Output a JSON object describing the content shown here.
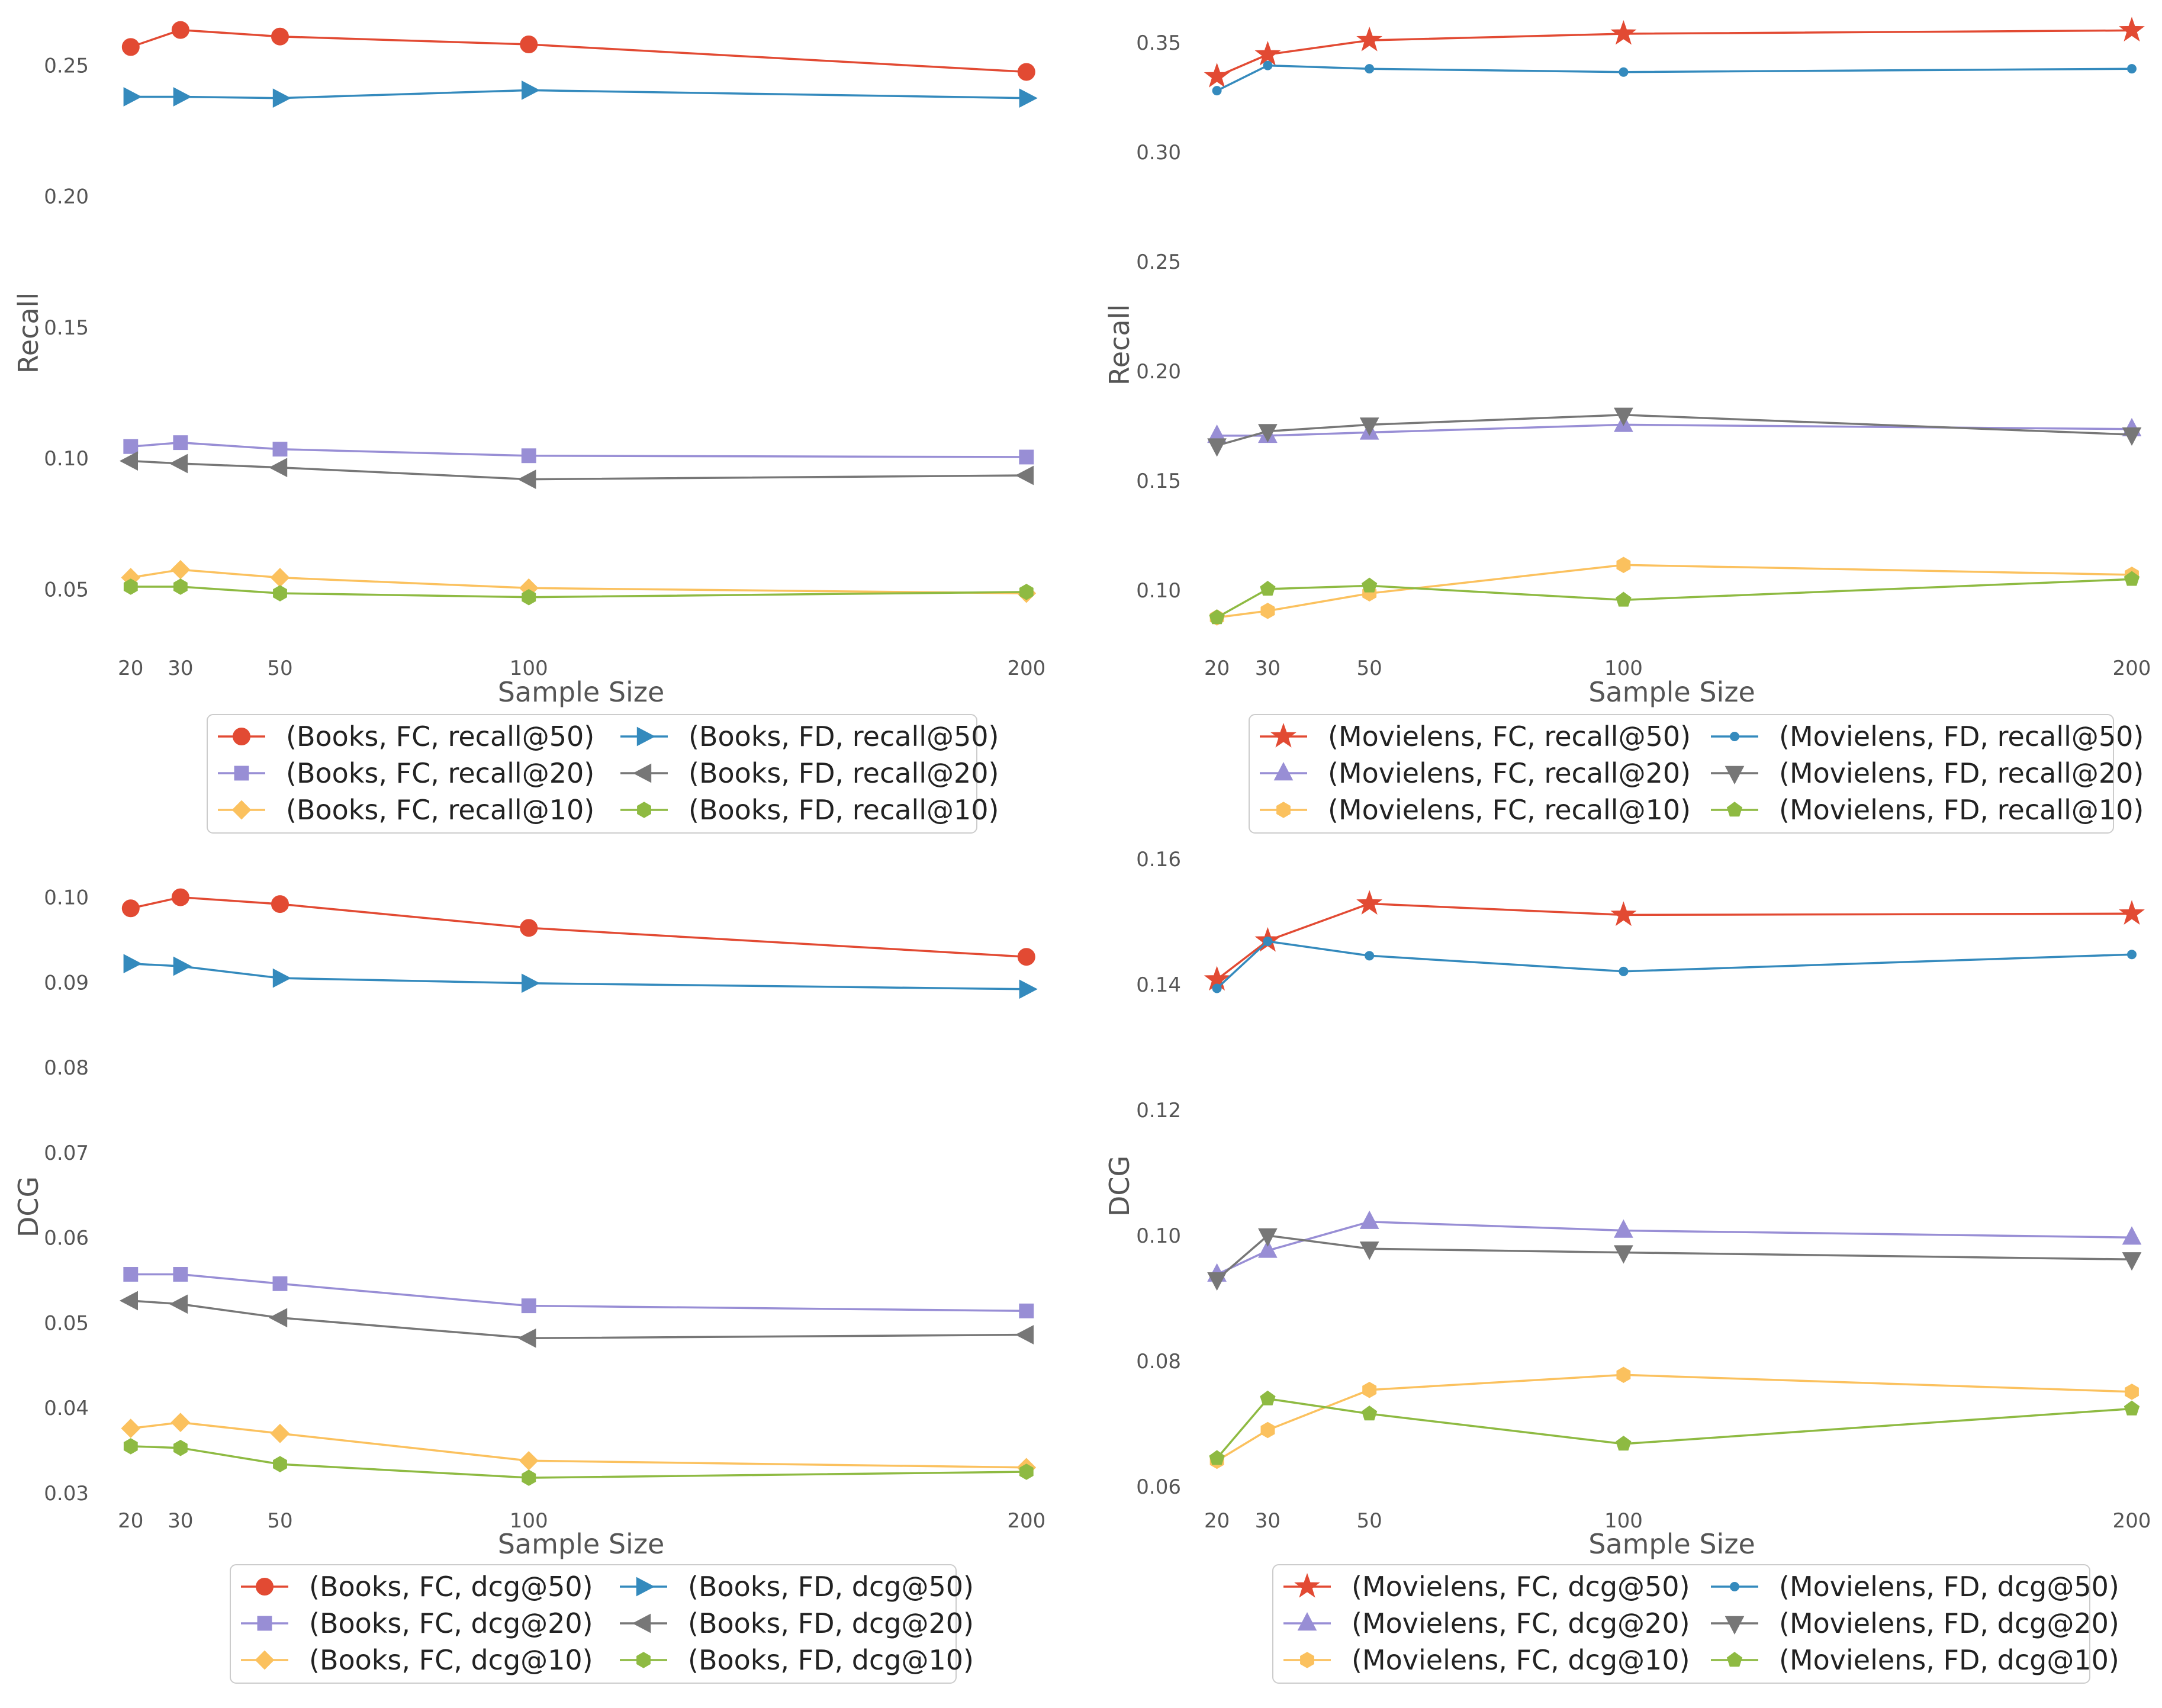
{
  "chart_data": [
    {
      "type": "line",
      "xlabel": "Sample Size",
      "ylabel": "Recall",
      "x": [
        20,
        30,
        50,
        100,
        200
      ],
      "xlim": [
        18,
        203
      ],
      "ylim": [
        0.037,
        0.265
      ],
      "yticks": [
        0.05,
        0.1,
        0.15,
        0.2,
        0.25
      ],
      "ytick_labels": [
        "0.05",
        "0.10",
        "0.15",
        "0.20",
        "0.25"
      ],
      "legend_position": "bottom-center",
      "series": [
        {
          "name": "(Books, FC, recall@50)",
          "color": "#E24A33",
          "marker": "circle",
          "values": [
            0.257,
            0.2635,
            0.261,
            0.258,
            0.2475
          ]
        },
        {
          "name": "(Books, FC, recall@20)",
          "color": "#988ED5",
          "marker": "square",
          "values": [
            0.1045,
            0.106,
            0.1035,
            0.101,
            0.1005
          ]
        },
        {
          "name": "(Books, FC, recall@10)",
          "color": "#FBC15E",
          "marker": "diamond",
          "values": [
            0.0545,
            0.0575,
            0.0545,
            0.0505,
            0.0485
          ]
        },
        {
          "name": "(Books, FD, recall@50)",
          "color": "#348ABD",
          "marker": "triangle-right",
          "values": [
            0.238,
            0.238,
            0.2375,
            0.2405,
            0.2375
          ]
        },
        {
          "name": "(Books, FD, recall@20)",
          "color": "#777777",
          "marker": "triangle-left",
          "values": [
            0.099,
            0.098,
            0.0965,
            0.092,
            0.0935
          ]
        },
        {
          "name": "(Books, FD, recall@10)",
          "color": "#8EBA42",
          "marker": "hexagon",
          "values": [
            0.051,
            0.051,
            0.0485,
            0.047,
            0.049
          ]
        }
      ]
    },
    {
      "type": "line",
      "xlabel": "Sample Size",
      "ylabel": "Recall",
      "x": [
        20,
        30,
        50,
        100,
        200
      ],
      "xlim": [
        19,
        200
      ],
      "ylim": [
        0.074,
        0.3575
      ],
      "yticks": [
        0.1,
        0.15,
        0.2,
        0.25,
        0.3,
        0.35
      ],
      "ytick_labels": [
        "0.10",
        "0.15",
        "0.20",
        "0.25",
        "0.30",
        "0.35"
      ],
      "legend_position": "bottom-center",
      "series": [
        {
          "name": "(Movielens, FC, recall@50)",
          "color": "#E24A33",
          "marker": "star",
          "values": [
            0.3345,
            0.3445,
            0.351,
            0.354,
            0.3555
          ]
        },
        {
          "name": "(Movielens, FC, recall@20)",
          "color": "#988ED5",
          "marker": "triangle-up",
          "values": [
            0.1705,
            0.1705,
            0.172,
            0.1755,
            0.1735
          ]
        },
        {
          "name": "(Movielens, FC, recall@10)",
          "color": "#FBC15E",
          "marker": "hexagon",
          "values": [
            0.0875,
            0.0905,
            0.0985,
            0.1115,
            0.107
          ]
        },
        {
          "name": "(Movielens, FD, recall@50)",
          "color": "#348ABD",
          "marker": "point",
          "values": [
            0.328,
            0.3395,
            0.338,
            0.3365,
            0.338
          ]
        },
        {
          "name": "(Movielens, FD, recall@20)",
          "color": "#777777",
          "marker": "triangle-down",
          "values": [
            0.166,
            0.1725,
            0.1755,
            0.18,
            0.171
          ]
        },
        {
          "name": "(Movielens, FD, recall@10)",
          "color": "#8EBA42",
          "marker": "pentagon",
          "values": [
            0.0875,
            0.1005,
            0.102,
            0.0955,
            0.105
          ]
        }
      ]
    },
    {
      "type": "line",
      "xlabel": "Sample Size",
      "ylabel": "DCG",
      "x": [
        20,
        30,
        50,
        100,
        200
      ],
      "xlim": [
        18,
        203
      ],
      "ylim": [
        0.0277,
        0.1015
      ],
      "yticks": [
        0.03,
        0.04,
        0.05,
        0.06,
        0.07,
        0.08,
        0.09,
        0.1
      ],
      "ytick_labels": [
        "0.03",
        "0.04",
        "0.05",
        "0.06",
        "0.07",
        "0.08",
        "0.09",
        "0.10"
      ],
      "legend_position": "bottom-center",
      "series": [
        {
          "name": "(Books, FC, dcg@50)",
          "color": "#E24A33",
          "marker": "circle",
          "values": [
            0.0987,
            0.1,
            0.0992,
            0.0964,
            0.093
          ]
        },
        {
          "name": "(Books, FC, dcg@20)",
          "color": "#988ED5",
          "marker": "square",
          "values": [
            0.0557,
            0.0557,
            0.0546,
            0.052,
            0.0514
          ]
        },
        {
          "name": "(Books, FC, dcg@10)",
          "color": "#FBC15E",
          "marker": "diamond",
          "values": [
            0.0376,
            0.0383,
            0.037,
            0.0338,
            0.033
          ]
        },
        {
          "name": "(Books, FD, dcg@50)",
          "color": "#348ABD",
          "marker": "triangle-right",
          "values": [
            0.0922,
            0.0919,
            0.0905,
            0.0899,
            0.0892
          ]
        },
        {
          "name": "(Books, FD, dcg@20)",
          "color": "#777777",
          "marker": "triangle-left",
          "values": [
            0.0526,
            0.0522,
            0.0506,
            0.0482,
            0.0486
          ]
        },
        {
          "name": "(Books, FD, dcg@10)",
          "color": "#8EBA42",
          "marker": "hexagon",
          "values": [
            0.0355,
            0.0353,
            0.0334,
            0.0318,
            0.0325
          ]
        }
      ]
    },
    {
      "type": "line",
      "xlabel": "Sample Size",
      "ylabel": "DCG",
      "x": [
        20,
        30,
        50,
        100,
        200
      ],
      "xlim": [
        19,
        200
      ],
      "ylim": [
        0.0582,
        0.1602
      ],
      "yticks": [
        0.06,
        0.08,
        0.1,
        0.12,
        0.14,
        0.16
      ],
      "ytick_labels": [
        "0.06",
        "0.08",
        "0.10",
        "0.12",
        "0.14",
        "0.16"
      ],
      "legend_position": "bottom-center",
      "series": [
        {
          "name": "(Movielens, FC, dcg@50)",
          "color": "#E24A33",
          "marker": "star",
          "values": [
            0.1408,
            0.147,
            0.1529,
            0.1511,
            0.1513
          ]
        },
        {
          "name": "(Movielens, FC, dcg@20)",
          "color": "#988ED5",
          "marker": "triangle-up",
          "values": [
            0.0938,
            0.0976,
            0.1022,
            0.1008,
            0.0997
          ]
        },
        {
          "name": "(Movielens, FC, dcg@10)",
          "color": "#FBC15E",
          "marker": "hexagon",
          "values": [
            0.0641,
            0.069,
            0.0754,
            0.0778,
            0.0751
          ]
        },
        {
          "name": "(Movielens, FD, dcg@50)",
          "color": "#348ABD",
          "marker": "point",
          "values": [
            0.1394,
            0.1469,
            0.1446,
            0.1421,
            0.1448
          ]
        },
        {
          "name": "(Movielens, FD, dcg@20)",
          "color": "#777777",
          "marker": "triangle-down",
          "values": [
            0.093,
            0.1,
            0.0979,
            0.0973,
            0.0962
          ]
        },
        {
          "name": "(Movielens, FD, dcg@10)",
          "color": "#8EBA42",
          "marker": "pentagon",
          "values": [
            0.0645,
            0.074,
            0.0716,
            0.0668,
            0.0724
          ]
        }
      ]
    }
  ]
}
